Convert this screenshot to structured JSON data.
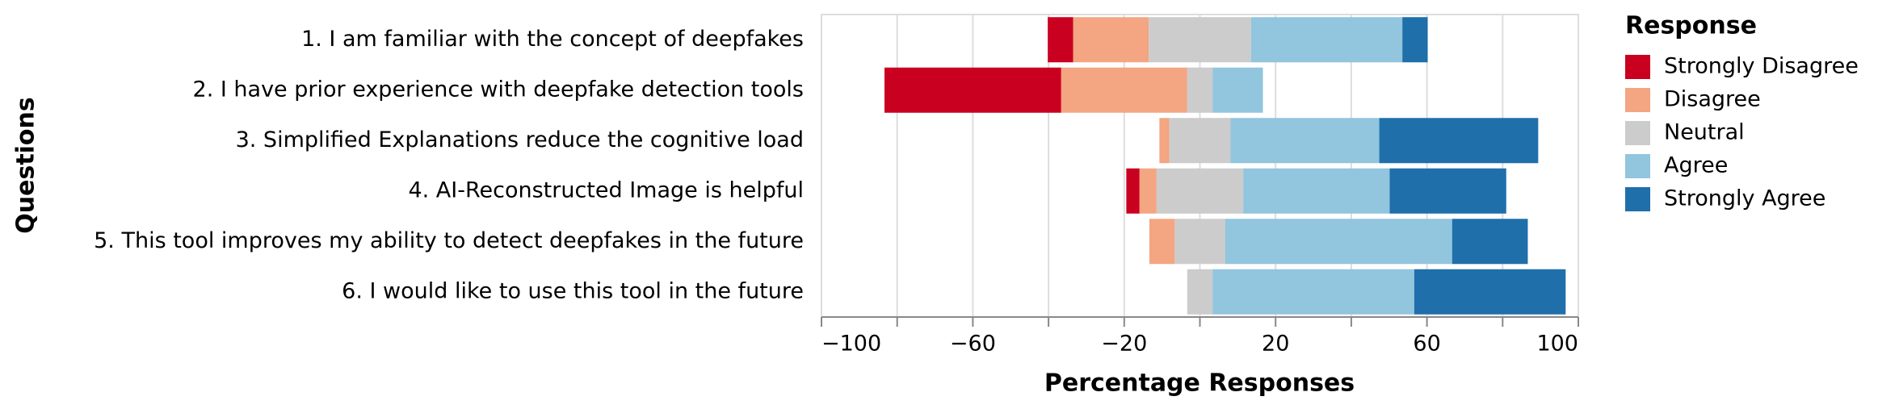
{
  "chart_data": {
    "type": "diverging_bar",
    "x_label": "Percentage Responses",
    "y_label": "Questions",
    "legend_title": "Response",
    "legend_position": "right",
    "categories": [
      "1. I am familiar with the concept of deepfakes",
      "2. I have prior experience with deepfake detection tools",
      "3. Simplified Explanations reduce the cognitive load",
      "4. AI-Reconstructed Image is helpful",
      "5. This tool improves my ability to detect deepfakes in the future",
      "6. I would like to use this tool in the future"
    ],
    "series": [
      {
        "name": "Strongly Disagree",
        "color": "#ca0020",
        "values": [
          6.7,
          46.7,
          0,
          3.5,
          0,
          0
        ]
      },
      {
        "name": "Disagree",
        "color": "#f4a582",
        "values": [
          20,
          33.3,
          2.6,
          4.5,
          6.7,
          0
        ]
      },
      {
        "name": "Neutral",
        "color": "#cccccc",
        "values": [
          27,
          6.7,
          16.2,
          22.9,
          13.3,
          6.7
        ]
      },
      {
        "name": "Agree",
        "color": "#92c5de",
        "values": [
          40,
          13.3,
          39.3,
          38.7,
          60,
          53.3
        ]
      },
      {
        "name": "Strongly Agree",
        "color": "#1f6fab",
        "values": [
          6.7,
          0,
          42,
          30.8,
          20,
          40
        ]
      }
    ],
    "xlim": [
      -100,
      100
    ],
    "xticks": [
      {
        "value": -100,
        "label": "−100"
      },
      {
        "value": -60,
        "label": "−60"
      },
      {
        "value": -20,
        "label": "−20"
      },
      20,
      60,
      100
    ],
    "xminorticks": [
      -80,
      -40,
      0,
      40,
      80
    ],
    "grid": true
  }
}
